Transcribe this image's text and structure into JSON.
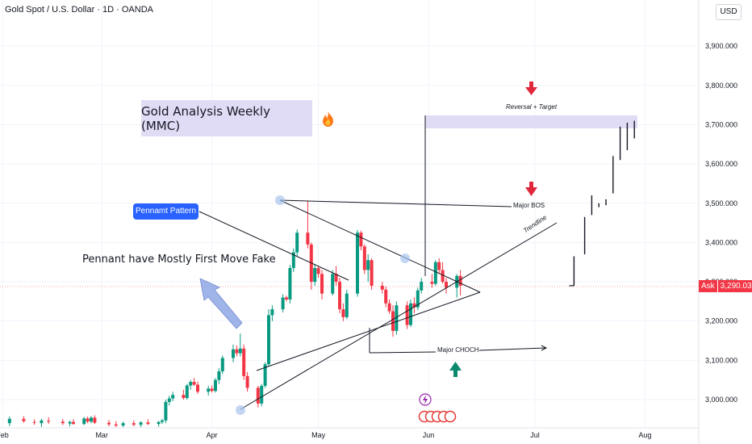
{
  "header": {
    "symbol_line": "Gold Spot / U.S. Dollar · 1D · OANDA"
  },
  "scale_button": "USD",
  "ask_badge": {
    "label": "Ask",
    "price": "3,290.030"
  },
  "annotations": {
    "title": "Gold Analysis Weekly (MMC)",
    "pattern_label": "Pennamt Pattern",
    "note": "Pennant have Mostly First Move Fake",
    "target_label": "Reversal + Target",
    "bos_label": "Major BOS",
    "choch_label": "Major CHOCH",
    "trendline_label": "Trendline"
  },
  "colors": {
    "up": "#089981",
    "down": "#f23645",
    "zone": "#e1dcf5",
    "label_blue": "#2962ff",
    "arrow_red": "#e0283c",
    "arrow_green": "#0a8a6c"
  },
  "chart_data": {
    "type": "candlestick",
    "x_ticks": [
      "Feb",
      "Mar",
      "Apr",
      "May",
      "Jun",
      "Jul",
      "Aug"
    ],
    "y_ticks": [
      "3,000.000",
      "3,100.000",
      "3,200.000",
      "3,300.000",
      "3,400.000",
      "3,500.000",
      "3,600.000",
      "3,700.000",
      "3,800.000",
      "3,900.000"
    ],
    "ylim": [
      2945,
      3990
    ],
    "current_price": 3290.03,
    "target_zone": [
      3690,
      3725
    ],
    "candles": [
      {
        "date": "2025-02-03",
        "o": 2940,
        "h": 2957,
        "l": 2933,
        "c": 2951
      },
      {
        "date": "2025-02-07",
        "o": 2951,
        "h": 2958,
        "l": 2941,
        "c": 2945
      },
      {
        "date": "2025-02-10",
        "o": 2943,
        "h": 2950,
        "l": 2936,
        "c": 2941
      },
      {
        "date": "2025-02-12",
        "o": 2940,
        "h": 2951,
        "l": 2930,
        "c": 2947
      },
      {
        "date": "2025-02-14",
        "o": 2946,
        "h": 2955,
        "l": 2938,
        "c": 2944
      },
      {
        "date": "2025-02-18",
        "o": 2944,
        "h": 2951,
        "l": 2935,
        "c": 2940
      },
      {
        "date": "2025-02-20",
        "o": 2939,
        "h": 2947,
        "l": 2932,
        "c": 2943
      },
      {
        "date": "2025-02-21",
        "o": 2943,
        "h": 2950,
        "l": 2936,
        "c": 2938
      },
      {
        "date": "2025-02-24",
        "o": 2938,
        "h": 2956,
        "l": 2935,
        "c": 2952
      },
      {
        "date": "2025-02-25",
        "o": 2952,
        "h": 2957,
        "l": 2940,
        "c": 2944
      },
      {
        "date": "2025-02-26",
        "o": 2944,
        "h": 2958,
        "l": 2940,
        "c": 2954
      },
      {
        "date": "2025-02-27",
        "o": 2954,
        "h": 2960,
        "l": 2938,
        "c": 2941
      },
      {
        "date": "2025-03-03",
        "o": 2941,
        "h": 2948,
        "l": 2932,
        "c": 2937
      },
      {
        "date": "2025-03-05",
        "o": 2937,
        "h": 2945,
        "l": 2930,
        "c": 2934
      },
      {
        "date": "2025-03-07",
        "o": 2934,
        "h": 2944,
        "l": 2928,
        "c": 2940
      },
      {
        "date": "2025-03-10",
        "o": 2940,
        "h": 2947,
        "l": 2932,
        "c": 2936
      },
      {
        "date": "2025-03-12",
        "o": 2936,
        "h": 2945,
        "l": 2930,
        "c": 2942
      },
      {
        "date": "2025-03-14",
        "o": 2942,
        "h": 2950,
        "l": 2935,
        "c": 2938
      },
      {
        "date": "2025-03-17",
        "o": 2938,
        "h": 2946,
        "l": 2931,
        "c": 2943
      },
      {
        "date": "2025-03-18",
        "o": 2943,
        "h": 2951,
        "l": 2938,
        "c": 2947
      },
      {
        "date": "2025-03-19",
        "o": 2947,
        "h": 3000,
        "l": 2940,
        "c": 2994
      },
      {
        "date": "2025-03-20",
        "o": 2994,
        "h": 3010,
        "l": 2985,
        "c": 3003
      },
      {
        "date": "2025-03-21",
        "o": 3003,
        "h": 3020,
        "l": 2996,
        "c": 3012
      },
      {
        "date": "2025-03-24",
        "o": 3012,
        "h": 3025,
        "l": 3000,
        "c": 3004
      },
      {
        "date": "2025-03-25",
        "o": 3004,
        "h": 3040,
        "l": 3000,
        "c": 3036
      },
      {
        "date": "2025-03-26",
        "o": 3036,
        "h": 3050,
        "l": 3025,
        "c": 3045
      },
      {
        "date": "2025-03-27",
        "o": 3045,
        "h": 3055,
        "l": 3035,
        "c": 3038
      },
      {
        "date": "2025-03-28",
        "o": 3038,
        "h": 3046,
        "l": 3015,
        "c": 3020
      },
      {
        "date": "2025-03-31",
        "o": 3020,
        "h": 3035,
        "l": 3010,
        "c": 3028
      },
      {
        "date": "2025-04-01",
        "o": 3028,
        "h": 3036,
        "l": 3018,
        "c": 3022
      },
      {
        "date": "2025-04-02",
        "o": 3022,
        "h": 3055,
        "l": 3018,
        "c": 3050
      },
      {
        "date": "2025-04-03",
        "o": 3050,
        "h": 3080,
        "l": 3040,
        "c": 3072
      },
      {
        "date": "2025-04-04",
        "o": 3072,
        "h": 3112,
        "l": 3065,
        "c": 3106
      },
      {
        "date": "2025-04-07",
        "o": 3106,
        "h": 3140,
        "l": 3095,
        "c": 3128
      },
      {
        "date": "2025-04-08",
        "o": 3128,
        "h": 3138,
        "l": 3110,
        "c": 3118
      },
      {
        "date": "2025-04-09",
        "o": 3118,
        "h": 3168,
        "l": 3110,
        "c": 3130
      },
      {
        "date": "2025-04-10",
        "o": 3130,
        "h": 3140,
        "l": 3050,
        "c": 3060
      },
      {
        "date": "2025-04-11",
        "o": 3060,
        "h": 3070,
        "l": 3020,
        "c": 3030
      },
      {
        "date": "2025-04-14",
        "o": 3030,
        "h": 3035,
        "l": 2980,
        "c": 2990
      },
      {
        "date": "2025-04-15",
        "o": 2990,
        "h": 3040,
        "l": 2983,
        "c": 3035
      },
      {
        "date": "2025-04-16",
        "o": 3035,
        "h": 3095,
        "l": 3030,
        "c": 3090
      },
      {
        "date": "2025-04-17",
        "o": 3090,
        "h": 3230,
        "l": 3085,
        "c": 3215
      },
      {
        "date": "2025-04-18",
        "o": 3215,
        "h": 3240,
        "l": 3200,
        "c": 3230
      },
      {
        "date": "2025-04-21",
        "o": 3230,
        "h": 3268,
        "l": 3222,
        "c": 3260
      },
      {
        "date": "2025-04-22",
        "o": 3260,
        "h": 3265,
        "l": 3250,
        "c": 3255
      },
      {
        "date": "2025-04-23",
        "o": 3255,
        "h": 3343,
        "l": 3245,
        "c": 3335
      },
      {
        "date": "2025-04-24",
        "o": 3335,
        "h": 3385,
        "l": 3325,
        "c": 3375
      },
      {
        "date": "2025-04-25",
        "o": 3375,
        "h": 3433,
        "l": 3365,
        "c": 3425
      },
      {
        "date": "2025-04-28",
        "o": 3425,
        "h": 3505,
        "l": 3385,
        "c": 3395
      },
      {
        "date": "2025-04-29",
        "o": 3395,
        "h": 3400,
        "l": 3280,
        "c": 3300
      },
      {
        "date": "2025-04-30",
        "o": 3300,
        "h": 3345,
        "l": 3290,
        "c": 3335
      },
      {
        "date": "2025-05-01",
        "o": 3335,
        "h": 3340,
        "l": 3310,
        "c": 3320
      },
      {
        "date": "2025-05-02",
        "o": 3320,
        "h": 3330,
        "l": 3255,
        "c": 3270
      },
      {
        "date": "2025-05-05",
        "o": 3270,
        "h": 3330,
        "l": 3265,
        "c": 3320
      },
      {
        "date": "2025-05-06",
        "o": 3320,
        "h": 3340,
        "l": 3290,
        "c": 3300
      },
      {
        "date": "2025-05-07",
        "o": 3300,
        "h": 3310,
        "l": 3220,
        "c": 3230
      },
      {
        "date": "2025-05-08",
        "o": 3230,
        "h": 3245,
        "l": 3200,
        "c": 3210
      },
      {
        "date": "2025-05-09",
        "o": 3210,
        "h": 3280,
        "l": 3205,
        "c": 3270
      },
      {
        "date": "2025-05-12",
        "o": 3270,
        "h": 3432,
        "l": 3262,
        "c": 3425
      },
      {
        "date": "2025-05-13",
        "o": 3425,
        "h": 3430,
        "l": 3380,
        "c": 3390
      },
      {
        "date": "2025-05-14",
        "o": 3390,
        "h": 3395,
        "l": 3320,
        "c": 3330
      },
      {
        "date": "2025-05-15",
        "o": 3330,
        "h": 3370,
        "l": 3300,
        "c": 3355
      },
      {
        "date": "2025-05-16",
        "o": 3355,
        "h": 3360,
        "l": 3280,
        "c": 3290
      },
      {
        "date": "2025-05-19",
        "o": 3290,
        "h": 3300,
        "l": 3270,
        "c": 3280
      },
      {
        "date": "2025-05-20",
        "o": 3280,
        "h": 3288,
        "l": 3235,
        "c": 3245
      },
      {
        "date": "2025-05-21",
        "o": 3245,
        "h": 3255,
        "l": 3218,
        "c": 3225
      },
      {
        "date": "2025-05-22",
        "o": 3225,
        "h": 3240,
        "l": 3160,
        "c": 3175
      },
      {
        "date": "2025-05-23",
        "o": 3175,
        "h": 3250,
        "l": 3165,
        "c": 3240
      },
      {
        "date": "2025-05-26",
        "o": 3240,
        "h": 3250,
        "l": 3180,
        "c": 3190
      },
      {
        "date": "2025-05-27",
        "o": 3190,
        "h": 3255,
        "l": 3185,
        "c": 3245
      },
      {
        "date": "2025-05-28",
        "o": 3245,
        "h": 3260,
        "l": 3220,
        "c": 3235
      },
      {
        "date": "2025-05-29",
        "o": 3235,
        "h": 3285,
        "l": 3228,
        "c": 3278
      },
      {
        "date": "2025-05-30",
        "o": 3278,
        "h": 3310,
        "l": 3270,
        "c": 3300
      },
      {
        "date": "2025-06-02",
        "o": 3300,
        "h": 3320,
        "l": 3285,
        "c": 3295
      },
      {
        "date": "2025-06-03",
        "o": 3295,
        "h": 3355,
        "l": 3290,
        "c": 3350
      },
      {
        "date": "2025-06-04",
        "o": 3350,
        "h": 3360,
        "l": 3320,
        "c": 3330
      },
      {
        "date": "2025-06-05",
        "o": 3330,
        "h": 3350,
        "l": 3295,
        "c": 3300
      },
      {
        "date": "2025-06-06",
        "o": 3300,
        "h": 3310,
        "l": 3270,
        "c": 3285
      },
      {
        "date": "2025-06-09",
        "o": 3285,
        "h": 3320,
        "l": 3260,
        "c": 3315
      },
      {
        "date": "2025-06-10",
        "o": 3315,
        "h": 3330,
        "l": 3265,
        "c": 3290
      }
    ],
    "projection": [
      {
        "date": "2025-07-12",
        "open": 3290,
        "close": 3365
      },
      {
        "date": "2025-07-15",
        "open": 3370,
        "close": 3465
      },
      {
        "date": "2025-07-17",
        "open": 3470,
        "close": 3520
      },
      {
        "date": "2025-07-19",
        "open": 3500,
        "close": 3490
      },
      {
        "date": "2025-07-21",
        "open": 3495,
        "close": 3510
      },
      {
        "date": "2025-07-23",
        "open": 3525,
        "close": 3620
      },
      {
        "date": "2025-07-25",
        "open": 3610,
        "close": 3695
      },
      {
        "date": "2025-07-27",
        "open": 3635,
        "close": 3705
      },
      {
        "date": "2025-07-29",
        "open": 3665,
        "close": 3710
      }
    ]
  }
}
